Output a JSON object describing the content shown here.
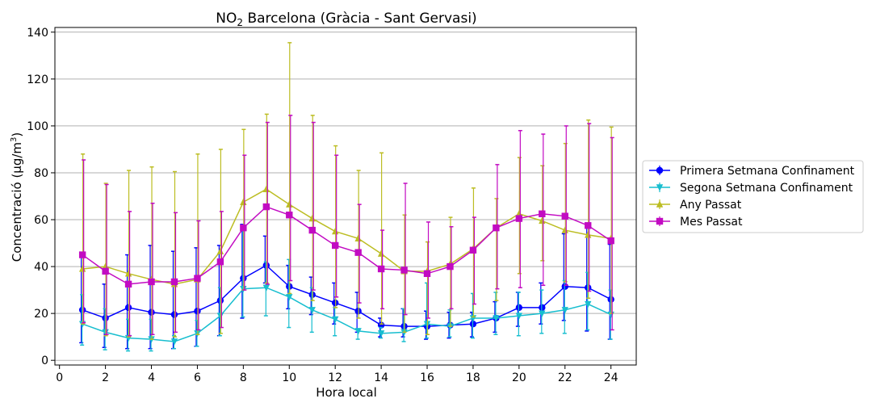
{
  "chart_data": {
    "type": "line",
    "title_main": "NO",
    "title_sub": "2",
    "title_rest": " Barcelona (Gràcia - Sant Gervasi)",
    "xlabel": "Hora local",
    "ylabel_main": "Concentració (µg/m",
    "ylabel_sup": "3",
    "ylabel_end": ")",
    "xlim": [
      -0.2,
      25.1
    ],
    "ylim": [
      -2,
      142
    ],
    "xticks": [
      0,
      2,
      4,
      6,
      8,
      10,
      12,
      14,
      16,
      18,
      20,
      22,
      24
    ],
    "yticks": [
      0,
      20,
      40,
      60,
      80,
      100,
      120,
      140
    ],
    "grid": "horizontal",
    "legend_position": "right",
    "series": [
      {
        "name": "Primera Setmana Confinament",
        "color": "#0000ff",
        "marker": "circle",
        "x": [
          1,
          2,
          3,
          4,
          5,
          6,
          7,
          8,
          9,
          10,
          11,
          12,
          13,
          14,
          15,
          16,
          17,
          18,
          19,
          20,
          21,
          22,
          23,
          24
        ],
        "y": [
          21.5,
          18,
          22.5,
          20.5,
          19.5,
          21,
          25.5,
          35,
          40.5,
          31.5,
          28,
          24.5,
          21,
          15,
          14.5,
          14.5,
          15,
          15.5,
          18,
          22.5,
          22.5,
          31.5,
          31,
          26
        ],
        "err_low": [
          7.5,
          5.5,
          5,
          5,
          5,
          6,
          10.5,
          18,
          33,
          22,
          19.5,
          15.5,
          12,
          10,
          10,
          9,
          9.5,
          10,
          12,
          14.5,
          15.5,
          17,
          12.5,
          9
        ],
        "err_high": [
          44,
          32.5,
          45,
          49,
          46.5,
          48,
          49,
          58,
          53,
          40.5,
          35.5,
          33,
          29,
          18,
          22,
          21,
          20.5,
          20.5,
          25,
          29,
          33,
          54,
          58.5,
          49.5
        ]
      },
      {
        "name": "Segona Setmana Confinament",
        "color": "#17becf",
        "marker": "triangle-down",
        "x": [
          1,
          2,
          3,
          4,
          5,
          6,
          7,
          8,
          9,
          10,
          11,
          12,
          13,
          14,
          15,
          16,
          17,
          18,
          19,
          20,
          21,
          22,
          23,
          24
        ],
        "y": [
          15.5,
          12,
          9.5,
          9,
          8,
          11.5,
          19,
          30.5,
          31,
          27,
          21.5,
          17.5,
          12.5,
          11.5,
          12,
          15.5,
          14.5,
          18,
          18,
          19,
          20,
          21.5,
          24,
          19.5
        ],
        "err_low": [
          6.5,
          4.5,
          4,
          4,
          5,
          6,
          10.5,
          18.5,
          19,
          14,
          12,
          10.5,
          9,
          9.5,
          8,
          9.5,
          10,
          9.5,
          11,
          10.5,
          11.5,
          11.5,
          13,
          9
        ],
        "err_high": [
          28,
          22,
          17.5,
          17.5,
          10.5,
          17,
          31,
          56,
          42,
          43,
          31,
          22.5,
          13.5,
          14,
          22,
          33,
          21.5,
          28.5,
          29,
          29,
          30,
          34,
          37.5,
          30
        ]
      },
      {
        "name": "Any Passat",
        "color": "#bcbd22",
        "marker": "triangle-up",
        "x": [
          1,
          2,
          3,
          4,
          5,
          6,
          7,
          8,
          9,
          10,
          11,
          12,
          13,
          14,
          15,
          16,
          17,
          18,
          19,
          20,
          21,
          22,
          23,
          24
        ],
        "y": [
          39,
          40,
          37,
          34.5,
          32.5,
          34.5,
          46.5,
          67.5,
          73,
          66.5,
          60.5,
          55,
          52,
          45.5,
          38,
          38,
          41,
          47.5,
          56.5,
          62.5,
          59.5,
          55.5,
          53.5,
          52
        ],
        "err_low": [
          15.5,
          10.5,
          10,
          9,
          10,
          11,
          11.5,
          30,
          33,
          28.5,
          25.5,
          22.5,
          18,
          15.5,
          12,
          11,
          14.5,
          18.5,
          25.5,
          37,
          42.5,
          33.5,
          26.5,
          20
        ],
        "err_high": [
          88,
          75.5,
          81,
          82.5,
          80.5,
          88,
          90,
          98.5,
          105,
          135.5,
          104.5,
          91.5,
          81,
          88.5,
          62,
          50.5,
          61,
          73.5,
          69,
          86.5,
          83,
          92.5,
          102.5,
          99.5
        ]
      },
      {
        "name": "Mes Passat",
        "color": "#c20bc2",
        "marker": "square",
        "x": [
          1,
          2,
          3,
          4,
          5,
          6,
          7,
          8,
          9,
          10,
          11,
          12,
          13,
          14,
          15,
          16,
          17,
          18,
          19,
          20,
          21,
          22,
          23,
          24
        ],
        "y": [
          45,
          38,
          32.5,
          33.5,
          33.5,
          35,
          42,
          56.5,
          65.5,
          62,
          55.5,
          49,
          46,
          39,
          38.5,
          37,
          40,
          47,
          56.5,
          60.5,
          62.5,
          61.5,
          57.5,
          51
        ],
        "err_low": [
          16,
          11,
          10.5,
          11,
          12,
          13,
          14,
          30,
          32.5,
          34,
          30,
          27,
          24.5,
          22,
          19.5,
          18,
          22,
          24,
          30.5,
          31,
          32,
          32,
          29.5,
          13
        ],
        "err_high": [
          85.5,
          75,
          63.5,
          67,
          63,
          59.5,
          63.5,
          87.5,
          101.5,
          104.5,
          101.5,
          87.5,
          66.5,
          55.5,
          75.5,
          59,
          57,
          61,
          83.5,
          98,
          96.5,
          100,
          101,
          95
        ]
      }
    ]
  }
}
